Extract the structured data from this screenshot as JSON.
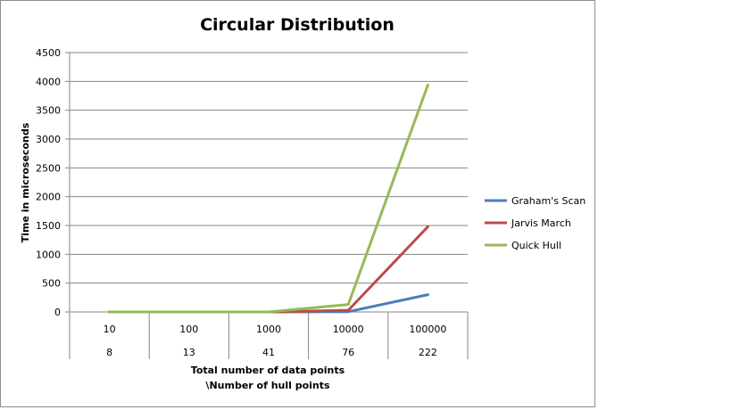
{
  "chart_data": {
    "type": "line",
    "title": "Circular Distribution",
    "ylabel": "Time in microseconds",
    "xlabel_line1": "Total number of data points",
    "xlabel_line2": "\\Number of hull points",
    "categories": [
      "10",
      "100",
      "1000",
      "10000",
      "100000"
    ],
    "categories_secondary": [
      "8",
      "13",
      "41",
      "76",
      "222"
    ],
    "ylim": [
      0,
      4500
    ],
    "yticks": [
      0,
      500,
      1000,
      1500,
      2000,
      2500,
      3000,
      3500,
      4000,
      4500
    ],
    "grid": true,
    "legend_position": "right",
    "series": [
      {
        "name": "Graham's Scan",
        "color": "#4a7ebb",
        "values": [
          0,
          0,
          0,
          5,
          300
        ]
      },
      {
        "name": "Jarvis March",
        "color": "#be4b48",
        "values": [
          0,
          0,
          0,
          30,
          1480
        ]
      },
      {
        "name": "Quick Hull",
        "color": "#98b954",
        "values": [
          0,
          0,
          0,
          130,
          3940
        ]
      }
    ]
  }
}
